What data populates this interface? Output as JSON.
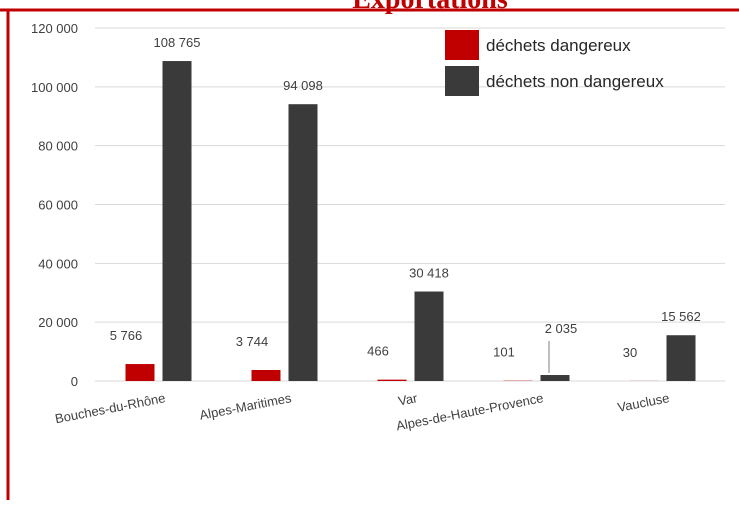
{
  "chart_data": {
    "type": "bar",
    "title": "Exportations",
    "categories": [
      "Bouches-du-Rhône",
      "Alpes-Maritimes",
      "Var",
      "Alpes-de-Haute-Provence",
      "Vaucluse"
    ],
    "series": [
      {
        "name": "déchets dangereux",
        "color": "#c00000",
        "values": [
          5766,
          3744,
          466,
          101,
          30
        ],
        "value_labels": [
          "5 766",
          "3 744",
          "466",
          "101",
          "30"
        ]
      },
      {
        "name": "déchets non dangereux",
        "color": "#3a3a3a",
        "values": [
          108765,
          94098,
          30418,
          2035,
          15562
        ],
        "value_labels": [
          "108 765",
          "94 098",
          "30 418",
          "2 035",
          "15 562"
        ]
      }
    ],
    "ylim": [
      0,
      120000
    ],
    "yticks": [
      {
        "value": 0,
        "label": "0"
      },
      {
        "value": 20000,
        "label": "20 000"
      },
      {
        "value": 40000,
        "label": "40 000"
      },
      {
        "value": 60000,
        "label": "60 000"
      },
      {
        "value": 80000,
        "label": "80 000"
      },
      {
        "value": 100000,
        "label": "100 000"
      },
      {
        "value": 120000,
        "label": "120 000"
      }
    ],
    "grid": true,
    "legend": "top-right"
  }
}
